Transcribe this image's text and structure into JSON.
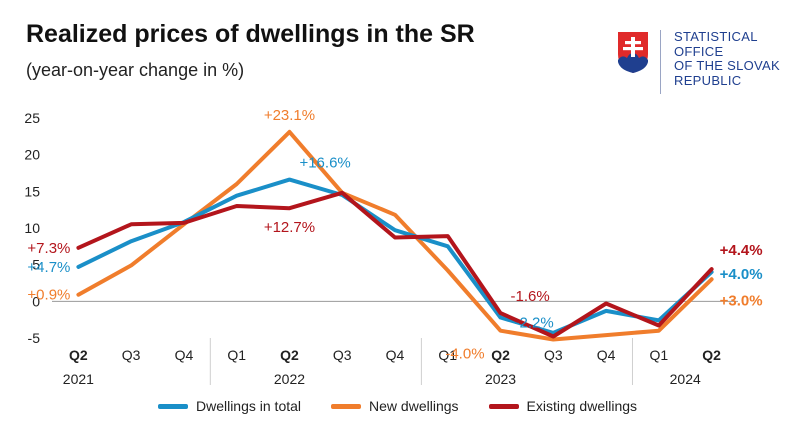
{
  "header": {
    "title": "Realized prices of dwellings in the SR",
    "subtitle": "(year-on-year change in %)"
  },
  "logo": {
    "lines": [
      "STATISTICAL",
      "OFFICE",
      "OF THE SLOVAK",
      "REPUBLIC"
    ],
    "icon": "slovak-coat-of-arms-icon",
    "colors": {
      "red": "#e02a2a",
      "blue": "#1f3f8f",
      "white": "#ffffff"
    }
  },
  "chart_data": {
    "type": "line",
    "categories": [
      "Q2",
      "Q3",
      "Q4",
      "Q1",
      "Q2",
      "Q3",
      "Q4",
      "Q1",
      "Q2",
      "Q3",
      "Q4",
      "Q1",
      "Q2"
    ],
    "bold_categories": [
      0,
      4,
      8,
      12
    ],
    "years": [
      {
        "label": "2021",
        "at": 0
      },
      {
        "label": "2022",
        "at": 4
      },
      {
        "label": "2023",
        "at": 8
      },
      {
        "label": "2024",
        "at": 11.5
      }
    ],
    "year_separators": [
      2.5,
      6.5,
      10.5
    ],
    "ylim": [
      -5,
      25
    ],
    "yticks": [
      -5,
      0,
      5,
      10,
      15,
      20,
      25
    ],
    "series": [
      {
        "name": "New dwellings",
        "color": "#f07d2c",
        "values": [
          0.9,
          4.9,
          10.5,
          16.0,
          23.1,
          14.8,
          11.8,
          4.2,
          -4.0,
          -5.2,
          -4.6,
          -4.0,
          3.0
        ]
      },
      {
        "name": "Dwellings in total",
        "color": "#1a8fc8",
        "values": [
          4.7,
          8.2,
          10.8,
          14.4,
          16.6,
          14.5,
          9.7,
          7.5,
          -2.2,
          -4.3,
          -1.3,
          -2.6,
          4.0
        ]
      },
      {
        "name": "Existing dwellings",
        "color": "#b3151c",
        "values": [
          7.3,
          10.5,
          10.7,
          13.0,
          12.7,
          14.8,
          8.7,
          8.9,
          -1.6,
          -4.8,
          -0.3,
          -3.3,
          4.4
        ]
      }
    ],
    "legend": [
      {
        "name": "Dwellings in total",
        "color": "#1a8fc8"
      },
      {
        "name": "New dwellings",
        "color": "#f07d2c"
      },
      {
        "name": "Existing dwellings",
        "color": "#b3151c"
      }
    ],
    "annotations": [
      {
        "text": "+23.1%",
        "series": "New dwellings",
        "index": 4,
        "color": "#f07d2c",
        "pos": "above"
      },
      {
        "text": "+16.6%",
        "series": "Dwellings in total",
        "index": 4,
        "color": "#1a8fc8",
        "pos": "right-above"
      },
      {
        "text": "+12.7%",
        "series": "Existing dwellings",
        "index": 4,
        "color": "#b3151c",
        "pos": "below"
      },
      {
        "text": "+7.3%",
        "series": "Existing dwellings",
        "index": 0,
        "color": "#b3151c",
        "pos": "left"
      },
      {
        "text": "+4.7%",
        "series": "Dwellings in total",
        "index": 0,
        "color": "#1a8fc8",
        "pos": "left"
      },
      {
        "text": "+0.9%",
        "series": "New dwellings",
        "index": 0,
        "color": "#f07d2c",
        "pos": "left"
      },
      {
        "text": "-1.6%",
        "series": "Existing dwellings",
        "index": 8,
        "color": "#b3151c",
        "pos": "right-above"
      },
      {
        "text": "-2.2%",
        "series": "Dwellings in total",
        "index": 8,
        "color": "#1a8fc8",
        "pos": "right-mid"
      },
      {
        "text": "-4.0%",
        "series": "New dwellings",
        "index": 8,
        "color": "#f07d2c",
        "pos": "left-below"
      },
      {
        "text": "+4.4%",
        "series": "Existing dwellings",
        "index": 12,
        "color": "#b3151c",
        "pos": "end-top",
        "bold": true
      },
      {
        "text": "+4.0%",
        "series": "Dwellings in total",
        "index": 12,
        "color": "#1a8fc8",
        "pos": "end-mid",
        "bold": true
      },
      {
        "text": "+3.0%",
        "series": "New dwellings",
        "index": 12,
        "color": "#f07d2c",
        "pos": "end-bottom",
        "bold": true
      }
    ]
  }
}
